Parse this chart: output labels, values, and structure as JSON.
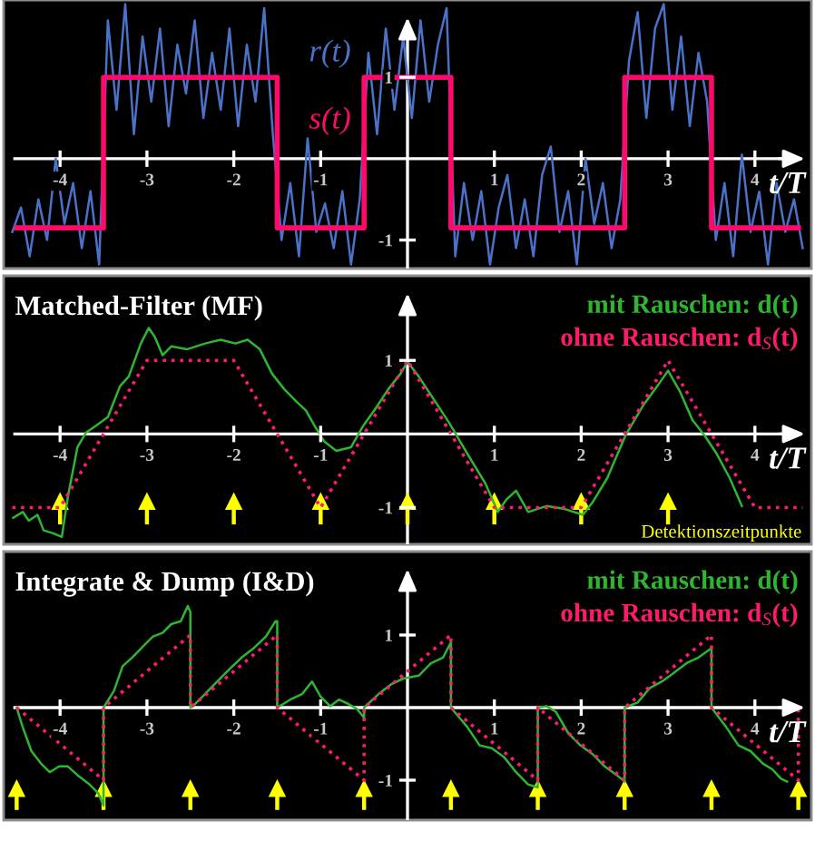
{
  "chart_data": [
    {
      "type": "line",
      "xlabel": "t/T",
      "xlim": [
        -4.65,
        4.65
      ],
      "xticks": [
        -4,
        -3,
        -2,
        -1,
        1,
        2,
        3,
        4
      ],
      "ylim": [
        -1.35,
        1.95
      ],
      "yticks": [
        -1,
        1
      ],
      "series": [
        {
          "name": "r(t)",
          "color": "#4a72c8",
          "x": [
            -4.55,
            -4.45,
            -4.35,
            -4.25,
            -4.15,
            -4.05,
            -3.95,
            -3.85,
            -3.75,
            -3.65,
            -3.55,
            -3.45,
            -3.35,
            -3.25,
            -3.15,
            -3.05,
            -2.95,
            -2.85,
            -2.75,
            -2.65,
            -2.55,
            -2.45,
            -2.35,
            -2.25,
            -2.15,
            -2.05,
            -1.95,
            -1.85,
            -1.75,
            -1.65,
            -1.55,
            -1.45,
            -1.35,
            -1.25,
            -1.15,
            -1.05,
            -0.95,
            -0.85,
            -0.75,
            -0.65,
            -0.55,
            -0.45,
            -0.35,
            -0.25,
            -0.15,
            -0.05,
            0.05,
            0.15,
            0.25,
            0.35,
            0.45,
            0.55,
            0.65,
            0.75,
            0.85,
            0.95,
            1.05,
            1.15,
            1.25,
            1.35,
            1.45,
            1.55,
            1.65,
            1.75,
            1.85,
            1.95,
            2.05,
            2.15,
            2.25,
            2.35,
            2.45,
            2.55,
            2.65,
            2.75,
            2.85,
            2.95,
            3.05,
            3.15,
            3.25,
            3.35,
            3.45,
            3.55,
            3.65,
            3.75,
            3.85,
            3.95,
            4.05,
            4.15,
            4.25,
            4.35,
            4.45,
            4.55
          ],
          "values": [
            -0.9,
            -0.6,
            -1.2,
            -0.5,
            -1.0,
            0.0,
            -0.8,
            -0.3,
            -1.1,
            -0.4,
            -1.3,
            1.7,
            0.6,
            1.9,
            0.3,
            1.5,
            0.7,
            1.6,
            0.4,
            1.4,
            0.8,
            1.7,
            0.5,
            1.3,
            0.6,
            1.6,
            0.4,
            1.4,
            0.7,
            1.85,
            0.3,
            -1.0,
            -0.3,
            -1.2,
            0.25,
            -0.9,
            -0.55,
            -1.1,
            -0.4,
            -1.3,
            -0.5,
            1.3,
            0.3,
            1.6,
            0.6,
            1.5,
            0.5,
            1.7,
            0.7,
            1.4,
            1.85,
            -1.2,
            -0.3,
            -1.0,
            -0.4,
            -1.3,
            -0.6,
            -0.2,
            -1.1,
            -0.5,
            -1.2,
            -0.2,
            0.15,
            -0.9,
            -0.4,
            -1.3,
            0.0,
            -0.8,
            -0.3,
            -1.1,
            -0.5,
            1.2,
            1.8,
            0.5,
            1.6,
            1.9,
            0.6,
            1.5,
            0.4,
            1.3,
            0.7,
            -1.0,
            -0.3,
            -1.2,
            0.05,
            -0.9,
            -0.4,
            -1.3,
            -0.3,
            -0.9,
            -0.5,
            -1.1
          ]
        },
        {
          "name": "s(t)",
          "type": "step",
          "color": "#ff0a6c",
          "x": [
            -4.5,
            -3.5,
            -1.5,
            -0.5,
            0.5,
            2.5,
            3.5,
            4.5
          ],
          "values": [
            -0.85,
            1,
            -0.85,
            1,
            -0.85,
            1,
            -0.85,
            -0.85
          ]
        }
      ]
    },
    {
      "type": "line",
      "title": "Matched-Filter (MF)",
      "xlabel": "t/T",
      "xlim": [
        -4.65,
        4.65
      ],
      "xticks": [
        -4,
        -3,
        -2,
        -1,
        1,
        2,
        3,
        4
      ],
      "ylim": [
        -1.5,
        2.15
      ],
      "yticks": [
        -1,
        1
      ],
      "legend": "top right",
      "annotations": [
        "Detektionszeitpunkte"
      ],
      "series": [
        {
          "name": "mit Rauschen: d(t)",
          "color": "#2fb52f",
          "x": [
            -4.54,
            -4.43,
            -4.36,
            -4.26,
            -4.19,
            -4.08,
            -3.98,
            -3.91,
            -3.8,
            -3.7,
            -3.59,
            -3.45,
            -3.31,
            -3.21,
            -3.07,
            -2.98,
            -2.91,
            -2.82,
            -2.72,
            -2.54,
            -2.33,
            -2.15,
            -1.98,
            -1.84,
            -1.7,
            -1.56,
            -1.42,
            -1.28,
            -1.17,
            -1.07,
            -0.96,
            -0.82,
            -0.65,
            -0.51,
            -0.36,
            -0.22,
            -0.08,
            0,
            0.13,
            0.27,
            0.48,
            0.69,
            0.9,
            1.04,
            1.14,
            1.25,
            1.39,
            1.6,
            1.81,
            2.02,
            2.13,
            2.3,
            2.51,
            2.72,
            2.9,
            3.0,
            3.14,
            3.28,
            3.42,
            3.56,
            3.71,
            3.85
          ],
          "values": [
            -1.14,
            -1.06,
            -1.18,
            -1.1,
            -1.31,
            -1.35,
            -1.4,
            -0.85,
            -0.18,
            0.02,
            0.11,
            0.23,
            0.65,
            0.78,
            1.23,
            1.44,
            1.32,
            1.07,
            1.19,
            1.15,
            1.23,
            1.28,
            1.23,
            1.28,
            1.15,
            0.82,
            0.61,
            0.44,
            0.32,
            0.11,
            -0.1,
            -0.23,
            -0.18,
            0.11,
            0.36,
            0.61,
            0.82,
            0.98,
            0.78,
            0.53,
            0.15,
            -0.27,
            -0.68,
            -1.06,
            -0.89,
            -0.77,
            -1.06,
            -0.98,
            -1.02,
            -1.1,
            -0.93,
            -0.6,
            -0.02,
            0.4,
            0.69,
            0.86,
            0.57,
            0.19,
            -0.02,
            -0.27,
            -0.6,
            -0.98
          ]
        },
        {
          "name": "ohne Rauschen: d$_{S}$(t)",
          "color": "#ff1a6e",
          "line_style": "dotted",
          "x": [
            -4.55,
            -4,
            -3,
            -2,
            -1,
            0,
            1,
            2,
            3,
            4,
            4.55
          ],
          "values": [
            -1,
            -1,
            1,
            1,
            -1,
            1,
            -1,
            -1,
            1,
            -1,
            -1
          ]
        },
        {
          "type": "scatter",
          "marker": "triangle",
          "color": "#ffff00",
          "x": [
            -4,
            -3,
            -2,
            -1,
            0,
            1,
            2,
            3
          ],
          "values": [
            -0.91,
            -0.91,
            -0.91,
            -0.91,
            -0.91,
            -0.91,
            -0.91,
            -0.91
          ],
          "errors": [
            [
              -1.23,
              -0.91
            ],
            [
              -1.23,
              -0.91
            ],
            [
              -1.23,
              -0.91
            ],
            [
              -1.23,
              -0.91
            ],
            [
              -1.23,
              -0.91
            ],
            [
              -1.23,
              -0.91
            ],
            [
              -1.23,
              -0.91
            ],
            [
              -1.23,
              -0.91
            ]
          ]
        }
      ]
    },
    {
      "type": "line",
      "title": "Integrate & Dump (I&D)",
      "xlabel": "t/T",
      "xlim": [
        -4.65,
        4.65
      ],
      "xticks": [
        -4,
        -3,
        -2,
        -1,
        1,
        2,
        3,
        4
      ],
      "ylim": [
        -1.55,
        2.15
      ],
      "yticks": [
        -1,
        1
      ],
      "legend": "top right",
      "series": [
        {
          "name": "mit Rauschen: d(t)",
          "color": "#2fb52f",
          "x": [
            -4.5,
            -4.43,
            -4.33,
            -4.22,
            -4.12,
            -4.01,
            -3.91,
            -3.8,
            -3.66,
            -3.56,
            -3.5,
            -3.5,
            -3.38,
            -3.28,
            -3.17,
            -3.03,
            -2.93,
            -2.82,
            -2.72,
            -2.61,
            -2.53,
            -2.5,
            -2.5,
            -2.47,
            -2.33,
            -2.19,
            -2.05,
            -1.91,
            -1.77,
            -1.63,
            -1.52,
            -1.5,
            -1.5,
            -1.35,
            -1.21,
            -1.1,
            -1.0,
            -0.89,
            -0.79,
            -0.68,
            -0.58,
            -0.5,
            -0.5,
            -0.33,
            -0.19,
            -0.05,
            0.13,
            0.27,
            0.41,
            0.5,
            0.5,
            0.69,
            0.83,
            0.97,
            1.11,
            1.25,
            1.39,
            1.5,
            1.5,
            1.6,
            1.71,
            1.85,
            1.99,
            2.13,
            2.27,
            2.41,
            2.5,
            2.5,
            2.65,
            2.79,
            2.93,
            3.07,
            3.21,
            3.35,
            3.5,
            3.5,
            3.67,
            3.81,
            3.95,
            4.09,
            4.2,
            4.3,
            4.37
          ],
          "values": [
            0,
            -0.27,
            -0.6,
            -0.77,
            -0.89,
            -0.81,
            -0.81,
            -0.93,
            -1.06,
            -1.18,
            -1.35,
            0,
            0.23,
            0.57,
            0.69,
            0.86,
            0.98,
            1.03,
            1.15,
            1.19,
            1.4,
            1.32,
            0,
            0.02,
            0.19,
            0.36,
            0.53,
            0.69,
            0.82,
            0.98,
            1.19,
            1.19,
            0,
            0.11,
            0.19,
            0.36,
            0.15,
            0.02,
            0.11,
            0.05,
            -0.02,
            -0.14,
            0,
            0.19,
            0.32,
            0.4,
            0.44,
            0.61,
            0.69,
            0.9,
            0,
            -0.27,
            -0.52,
            -0.56,
            -0.68,
            -0.89,
            -1.06,
            -1.1,
            0,
            0.02,
            -0.06,
            -0.35,
            -0.52,
            -0.64,
            -0.81,
            -0.93,
            -1.02,
            0,
            0.07,
            0.27,
            0.36,
            0.48,
            0.61,
            0.69,
            0.82,
            0,
            -0.27,
            -0.52,
            -0.6,
            -0.77,
            -0.85,
            -0.98,
            -1.02
          ]
        },
        {
          "name": "ohne Rauschen: d$_{S}$(t)",
          "color": "#ff1a6e",
          "line_style": "dotted",
          "x": [
            -4.5,
            -3.5,
            -3.5,
            -2.5,
            -2.5,
            -1.5,
            -1.5,
            -0.5,
            -0.5,
            0.5,
            0.5,
            1.5,
            1.5,
            2.5,
            2.5,
            3.5,
            3.5,
            4.5,
            4.5
          ],
          "values": [
            0,
            -1,
            0,
            1,
            0,
            1,
            0,
            -1,
            0,
            1,
            0,
            -1,
            0,
            -1,
            0,
            1,
            0,
            -1,
            0
          ]
        },
        {
          "type": "scatter",
          "marker": "triangle",
          "color": "#ffff00",
          "x": [
            -4.5,
            -3.5,
            -2.5,
            -1.5,
            -0.5,
            0.5,
            1.5,
            2.5,
            3.5,
            4.5
          ],
          "values": [
            -1.11,
            -1.11,
            -1.11,
            -1.11,
            -1.11,
            -1.11,
            -1.11,
            -1.11,
            -1.11,
            -1.11
          ],
          "errors": [
            [
              -1.41,
              -1.11
            ],
            [
              -1.41,
              -1.11
            ],
            [
              -1.41,
              -1.11
            ],
            [
              -1.41,
              -1.11
            ],
            [
              -1.41,
              -1.11
            ],
            [
              -1.41,
              -1.11
            ],
            [
              -1.41,
              -1.11
            ],
            [
              -1.41,
              -1.11
            ],
            [
              -1.41,
              -1.11
            ],
            [
              -1.41,
              -1.11
            ]
          ]
        }
      ]
    }
  ]
}
